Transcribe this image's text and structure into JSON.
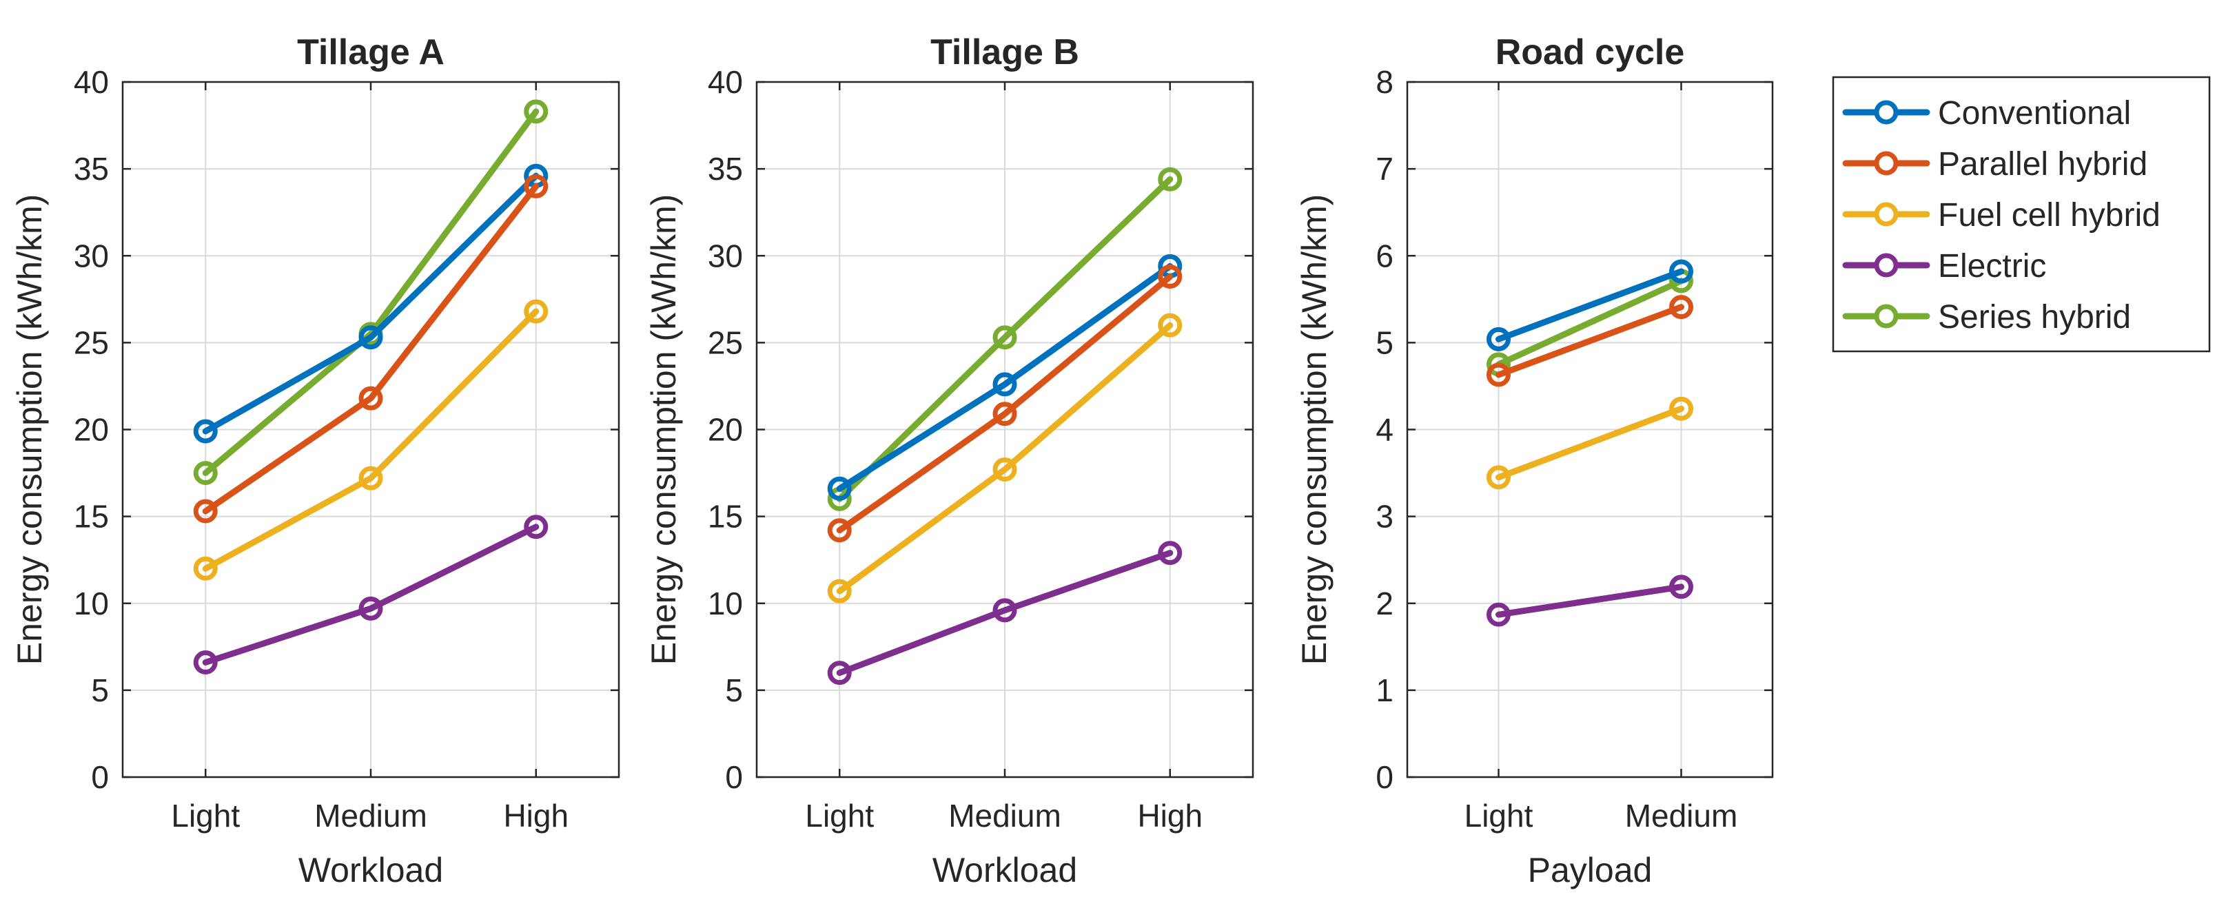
{
  "series_colors": {
    "Conventional": "#0072BD",
    "Parallel hybrid": "#D95319",
    "Fuel cell hybrid": "#EDB120",
    "Electric": "#7E2F8E",
    "Series hybrid": "#77AC30"
  },
  "legend": {
    "entries": [
      "Conventional",
      "Parallel hybrid",
      "Fuel cell hybrid",
      "Electric",
      "Series hybrid"
    ]
  },
  "chart_data": [
    {
      "type": "line",
      "title": "Tillage A",
      "xlabel": "Workload",
      "ylabel": "Energy consumption (kWh/km)",
      "categories": [
        "Light",
        "Medium",
        "High"
      ],
      "ylim": [
        0,
        40
      ],
      "yticks": [
        0,
        5,
        10,
        15,
        20,
        25,
        30,
        35,
        40
      ],
      "grid": true,
      "series": [
        {
          "name": "Conventional",
          "values": [
            19.9,
            25.3,
            34.6
          ]
        },
        {
          "name": "Parallel hybrid",
          "values": [
            15.3,
            21.8,
            34.0
          ]
        },
        {
          "name": "Fuel cell hybrid",
          "values": [
            12.0,
            17.2,
            26.8
          ]
        },
        {
          "name": "Electric",
          "values": [
            6.6,
            9.7,
            14.4
          ]
        },
        {
          "name": "Series hybrid",
          "values": [
            17.5,
            25.5,
            38.3
          ]
        }
      ]
    },
    {
      "type": "line",
      "title": "Tillage B",
      "xlabel": "Workload",
      "ylabel": "Energy consumption (kWh/km)",
      "categories": [
        "Light",
        "Medium",
        "High"
      ],
      "ylim": [
        0,
        40
      ],
      "yticks": [
        0,
        5,
        10,
        15,
        20,
        25,
        30,
        35,
        40
      ],
      "grid": true,
      "series": [
        {
          "name": "Conventional",
          "values": [
            16.6,
            22.6,
            29.4
          ]
        },
        {
          "name": "Parallel hybrid",
          "values": [
            14.2,
            20.9,
            28.8
          ]
        },
        {
          "name": "Fuel cell hybrid",
          "values": [
            10.7,
            17.7,
            26.0
          ]
        },
        {
          "name": "Electric",
          "values": [
            6.0,
            9.6,
            12.9
          ]
        },
        {
          "name": "Series hybrid",
          "values": [
            16.0,
            25.3,
            34.4
          ]
        }
      ]
    },
    {
      "type": "line",
      "title": "Road cycle",
      "xlabel": "Payload",
      "ylabel": "Energy consumption (kWh/km)",
      "categories": [
        "Light",
        "Medium"
      ],
      "ylim": [
        0,
        8
      ],
      "yticks": [
        0,
        1,
        2,
        3,
        4,
        5,
        6,
        7,
        8
      ],
      "grid": true,
      "series": [
        {
          "name": "Conventional",
          "values": [
            5.04,
            5.82
          ]
        },
        {
          "name": "Parallel hybrid",
          "values": [
            4.63,
            5.41
          ]
        },
        {
          "name": "Fuel cell hybrid",
          "values": [
            3.45,
            4.24
          ]
        },
        {
          "name": "Electric",
          "values": [
            1.87,
            2.19
          ]
        },
        {
          "name": "Series hybrid",
          "values": [
            4.75,
            5.71
          ]
        }
      ]
    }
  ]
}
